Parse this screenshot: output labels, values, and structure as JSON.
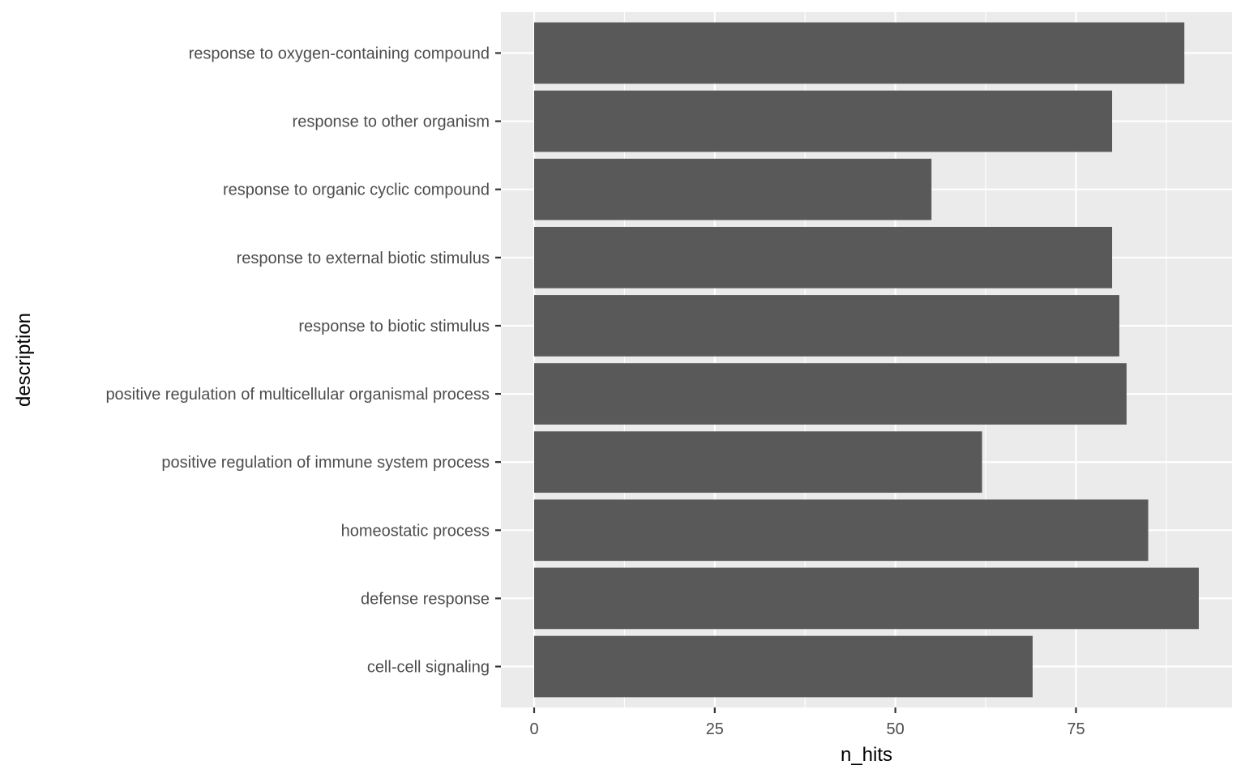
{
  "chart_data": {
    "type": "bar",
    "orientation": "horizontal",
    "title": "",
    "xlabel": "n_hits",
    "ylabel": "description",
    "categories": [
      "response to oxygen-containing compound",
      "response to other organism",
      "response to organic cyclic compound",
      "response to external biotic stimulus",
      "response to biotic stimulus",
      "positive regulation of multicellular organismal process",
      "positive regulation of immune system process",
      "homeostatic process",
      "defense response",
      "cell-cell signaling"
    ],
    "values": [
      90,
      80,
      55,
      80,
      81,
      82,
      62,
      85,
      92,
      69
    ],
    "xlim": [
      -4.6,
      96.6
    ],
    "xticks": [
      0,
      25,
      50,
      75
    ],
    "xtick_labels": [
      "0",
      "25",
      "50",
      "75"
    ],
    "grid": true,
    "colors": {
      "bar": "#595959",
      "panel": "#EBEBEB",
      "grid": "#FFFFFF",
      "text": "#4D4D4D"
    }
  }
}
